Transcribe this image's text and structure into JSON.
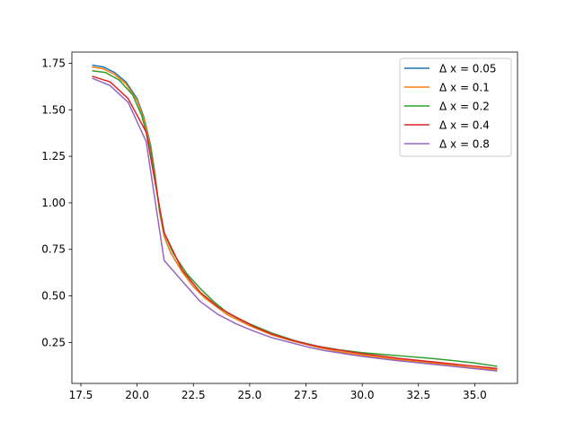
{
  "chart_data": {
    "type": "line",
    "title": "",
    "xlabel": "",
    "ylabel": "",
    "xlim": [
      17.1,
      36.9
    ],
    "ylim": [
      0.03,
      1.81
    ],
    "xticks": [
      17.5,
      20.0,
      22.5,
      25.0,
      27.5,
      30.0,
      32.5,
      35.0
    ],
    "xtick_labels": [
      "17.5",
      "20.0",
      "22.5",
      "25.0",
      "27.5",
      "30.0",
      "32.5",
      "35.0"
    ],
    "yticks": [
      0.25,
      0.5,
      0.75,
      1.0,
      1.25,
      1.5,
      1.75
    ],
    "ytick_labels": [
      "0.25",
      "0.50",
      "0.75",
      "1.00",
      "1.25",
      "1.50",
      "1.75"
    ],
    "grid": false,
    "legend_position": "top-right",
    "series": [
      {
        "name": "Δ x = 0.05",
        "color": "#1f77b4",
        "x": [
          18.0,
          18.5,
          19.0,
          19.5,
          20.0,
          20.3,
          20.6,
          20.8,
          21.0,
          21.2,
          21.5,
          22.0,
          22.5,
          23.0,
          24.0,
          25.0,
          26.0,
          27.0,
          28.0,
          29.0,
          30.0,
          31.0,
          32.0,
          33.0,
          34.0,
          35.0,
          36.0
        ],
        "y": [
          1.74,
          1.73,
          1.7,
          1.65,
          1.56,
          1.46,
          1.31,
          1.15,
          0.95,
          0.82,
          0.73,
          0.63,
          0.55,
          0.49,
          0.4,
          0.34,
          0.29,
          0.255,
          0.225,
          0.2,
          0.18,
          0.165,
          0.15,
          0.14,
          0.125,
          0.11,
          0.1
        ]
      },
      {
        "name": "Δ x = 0.1",
        "color": "#ff7f0e",
        "x": [
          18.0,
          18.5,
          19.0,
          19.5,
          20.0,
          20.3,
          20.6,
          20.8,
          21.0,
          21.2,
          21.5,
          22.0,
          22.5,
          23.0,
          24.0,
          25.0,
          26.0,
          27.0,
          28.0,
          29.0,
          30.0,
          31.0,
          32.0,
          33.0,
          34.0,
          35.0,
          36.0
        ],
        "y": [
          1.73,
          1.72,
          1.69,
          1.64,
          1.55,
          1.45,
          1.3,
          1.14,
          0.95,
          0.82,
          0.73,
          0.63,
          0.55,
          0.49,
          0.4,
          0.34,
          0.29,
          0.255,
          0.225,
          0.2,
          0.182,
          0.167,
          0.153,
          0.142,
          0.128,
          0.114,
          0.104
        ]
      },
      {
        "name": "Δ x = 0.2",
        "color": "#2ca02c",
        "x": [
          18.0,
          18.6,
          19.2,
          19.8,
          20.2,
          20.6,
          21.0,
          21.2,
          21.6,
          22.2,
          22.8,
          23.4,
          24.0,
          25.0,
          26.0,
          27.0,
          28.0,
          29.0,
          30.0,
          31.0,
          32.0,
          33.0,
          34.0,
          35.0,
          36.0
        ],
        "y": [
          1.71,
          1.7,
          1.66,
          1.58,
          1.47,
          1.29,
          0.96,
          0.84,
          0.73,
          0.62,
          0.54,
          0.47,
          0.41,
          0.35,
          0.3,
          0.26,
          0.23,
          0.21,
          0.195,
          0.185,
          0.175,
          0.165,
          0.153,
          0.14,
          0.122
        ]
      },
      {
        "name": "Δ x = 0.4",
        "color": "#d62728",
        "x": [
          18.0,
          18.8,
          19.6,
          20.4,
          21.2,
          22.0,
          22.8,
          23.6,
          24.4,
          25.2,
          26.0,
          26.8,
          27.6,
          28.4,
          29.2,
          30.0,
          30.8,
          31.6,
          32.4,
          33.2,
          34.0,
          34.8,
          35.6,
          36.0
        ],
        "y": [
          1.68,
          1.65,
          1.56,
          1.38,
          0.84,
          0.64,
          0.52,
          0.44,
          0.385,
          0.335,
          0.295,
          0.265,
          0.24,
          0.22,
          0.205,
          0.19,
          0.178,
          0.165,
          0.155,
          0.145,
          0.135,
          0.125,
          0.115,
          0.11
        ]
      },
      {
        "name": "Δ x = 0.8",
        "color": "#9467bd",
        "x": [
          18.0,
          18.8,
          19.6,
          20.4,
          21.2,
          22.0,
          22.8,
          23.6,
          24.4,
          25.2,
          26.0,
          26.8,
          27.6,
          28.4,
          29.2,
          30.0,
          30.8,
          31.6,
          32.4,
          33.2,
          34.0,
          34.8,
          35.6,
          36.0
        ],
        "y": [
          1.67,
          1.63,
          1.54,
          1.33,
          0.69,
          0.58,
          0.47,
          0.4,
          0.35,
          0.31,
          0.275,
          0.25,
          0.225,
          0.205,
          0.19,
          0.175,
          0.163,
          0.152,
          0.142,
          0.132,
          0.122,
          0.112,
          0.102,
          0.097
        ]
      }
    ]
  }
}
